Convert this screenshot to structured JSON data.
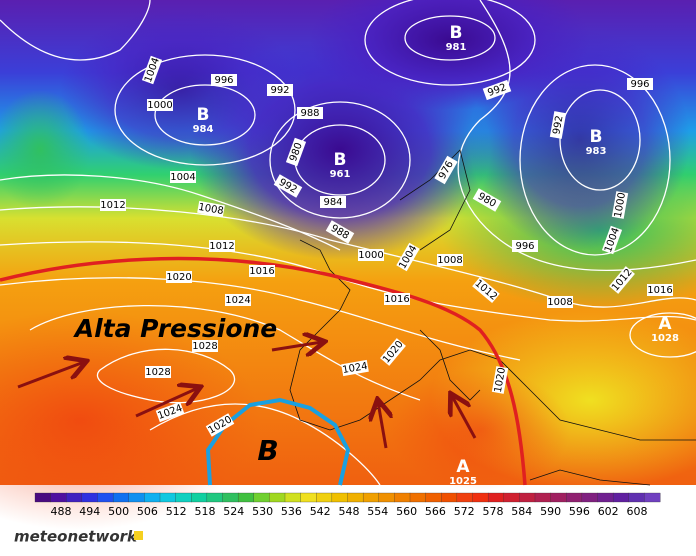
{
  "annotation": "Alta Pressione",
  "low_symbol": "B",
  "brand": "meteonetwork",
  "centers": [
    {
      "symbol": "B",
      "value": "981"
    },
    {
      "symbol": "B",
      "value": "984"
    },
    {
      "symbol": "B",
      "value": "961"
    },
    {
      "symbol": "B",
      "value": "983"
    },
    {
      "symbol": "A",
      "value": "1028"
    },
    {
      "symbol": "A",
      "value": "1025"
    }
  ],
  "isobar_labels": [
    "1004",
    "996",
    "1000",
    "992",
    "988",
    "980",
    "992",
    "984",
    "988",
    "1000",
    "1004",
    "1008",
    "976",
    "980",
    "992",
    "996",
    "992",
    "1000",
    "1004",
    "996",
    "1012",
    "1016",
    "1008",
    "1012",
    "1012",
    "1016",
    "1020",
    "1016",
    "1024",
    "1028",
    "1028",
    "1024",
    "1020",
    "1024",
    "1020",
    "1020",
    "1012",
    "1004",
    "1008"
  ],
  "colorbar": {
    "ticks": [
      488,
      494,
      500,
      506,
      512,
      518,
      524,
      530,
      536,
      542,
      548,
      554,
      560,
      566,
      572,
      578,
      584,
      590,
      596,
      602,
      608
    ]
  }
}
